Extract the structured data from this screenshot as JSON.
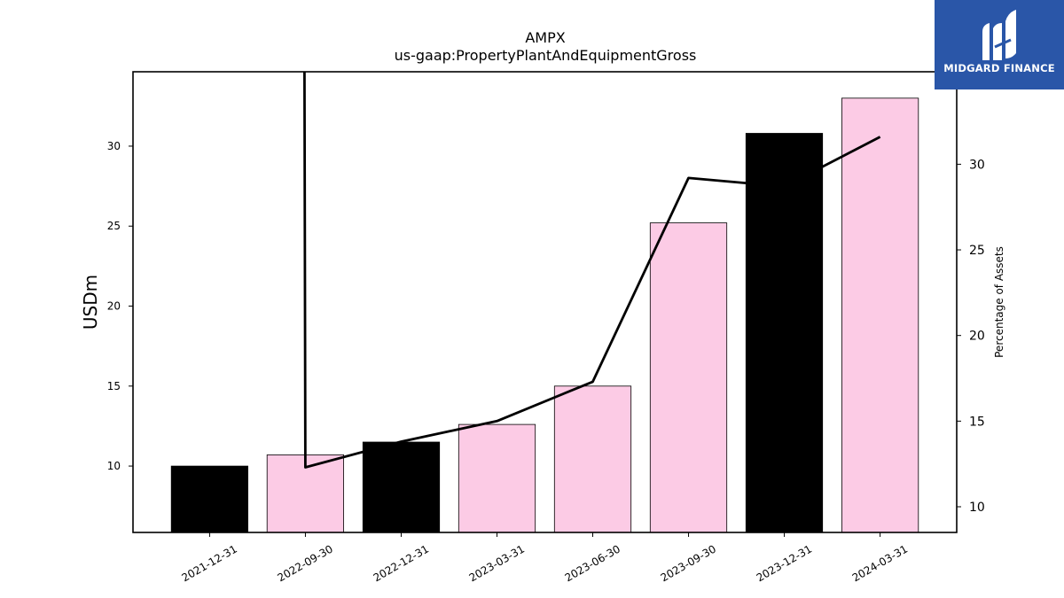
{
  "chart_data": {
    "type": "bar",
    "title": "AMPX",
    "subtitle": "us-gaap:PropertyPlantAndEquipmentGross",
    "ylabel": "USDm",
    "y2label": "Percentage of Assets",
    "categories": [
      "2021-12-31",
      "2022-09-30",
      "2022-12-31",
      "2023-03-31",
      "2023-06-30",
      "2023-09-30",
      "2023-12-31",
      "2024-03-31"
    ],
    "series": [
      {
        "values": [
          10.0,
          10.7,
          11.5,
          12.6,
          15.0,
          25.2,
          30.8,
          33.0
        ],
        "colors": [
          "#000000",
          "#fccbe5",
          "#000000",
          "#fccbe5",
          "#fccbe5",
          "#fccbe5",
          "#000000",
          "#fccbe5"
        ]
      },
      {
        "axis": "right",
        "values": [
          null,
          12.3,
          13.8,
          15.0,
          17.3,
          29.2,
          28.7,
          31.6
        ],
        "color": "#000000"
      }
    ],
    "line_spike_to_top_at": "2022-09-30",
    "ylim": [
      5.85,
      34.65
    ],
    "y2lim": [
      8.5,
      35.4
    ],
    "yticks": [
      10,
      15,
      20,
      25,
      30
    ],
    "y2ticks": [
      10,
      15,
      20,
      25,
      30
    ],
    "grid": false
  },
  "logo": {
    "text": "MIDGARD FINANCE",
    "background": "#2a56a8"
  }
}
